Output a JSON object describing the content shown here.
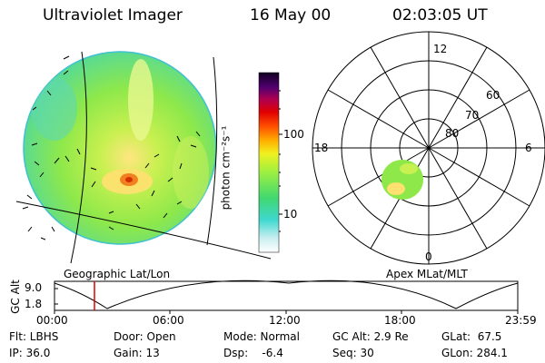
{
  "header": {
    "instrument": "Ultraviolet Imager",
    "date": "16 May 00",
    "time": "02:03:05 UT"
  },
  "colorbar": {
    "unit_label": "photon cm⁻²s⁻¹",
    "ticks": [
      "100",
      "10"
    ],
    "scale": "log"
  },
  "left_panel": {
    "label": "Geographic Lat/Lon"
  },
  "right_panel": {
    "label": "Apex MLat/MLT",
    "mlt_labels": [
      "12",
      "18",
      "6",
      "0"
    ],
    "lat_labels": [
      "60",
      "70",
      "80"
    ]
  },
  "altitude_strip": {
    "axis_label": "GC Alt",
    "y_ticks": [
      "9.0",
      "1.8"
    ],
    "time_ticks": [
      "00:00",
      "06:00",
      "12:00",
      "18:00",
      "23:59"
    ],
    "current_time_marker": "02:03:05"
  },
  "info": {
    "flt": "Flt: LBHS",
    "ip": "IP: 36.0",
    "door": "Door: Open",
    "gain": "Gain: 13",
    "mode": "Mode: Normal",
    "dsp": "Dsp:    -6.4",
    "gc_alt": "GC Alt: 2.9 Re",
    "seq": "Seq: 30",
    "glat": "GLat:  67.5",
    "glon": "GLon: 284.1"
  }
}
